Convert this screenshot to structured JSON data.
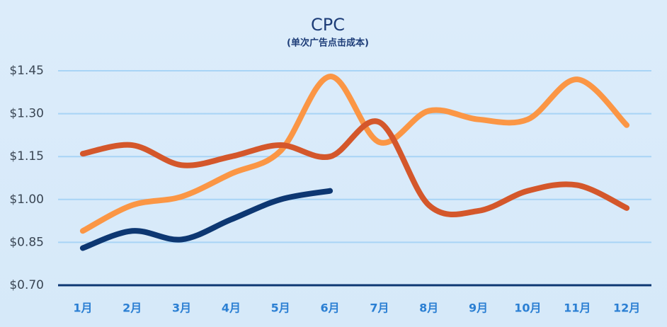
{
  "chart_data": {
    "type": "line",
    "title": "CPC",
    "subtitle": "(单次广告点击成本)",
    "categories": [
      "1月",
      "2月",
      "3月",
      "4月",
      "5月",
      "6月",
      "7月",
      "8月",
      "9月",
      "10月",
      "11月",
      "12月"
    ],
    "series": [
      {
        "color": "#fb9645",
        "values": [
          0.89,
          0.98,
          1.01,
          1.09,
          1.17,
          1.43,
          1.2,
          1.31,
          1.28,
          1.28,
          1.42,
          1.26
        ]
      },
      {
        "color": "#d4572b",
        "values": [
          1.16,
          1.19,
          1.12,
          1.15,
          1.19,
          1.15,
          1.27,
          0.98,
          0.96,
          1.03,
          1.05,
          0.97
        ]
      },
      {
        "color": "#0d3772",
        "values": [
          0.83,
          0.89,
          0.86,
          0.93,
          1.0,
          1.03,
          null,
          null,
          null,
          null,
          null,
          null
        ]
      }
    ],
    "ylim": [
      0.7,
      1.45
    ],
    "yticks": [
      {
        "value": 0.7,
        "label": "$0.70"
      },
      {
        "value": 0.85,
        "label": "$0.85"
      },
      {
        "value": 1.0,
        "label": "$1.00"
      },
      {
        "value": 1.15,
        "label": "$1.15"
      },
      {
        "value": 1.3,
        "label": "$1.30"
      },
      {
        "value": 1.45,
        "label": "$1.45"
      }
    ],
    "grid": true
  }
}
